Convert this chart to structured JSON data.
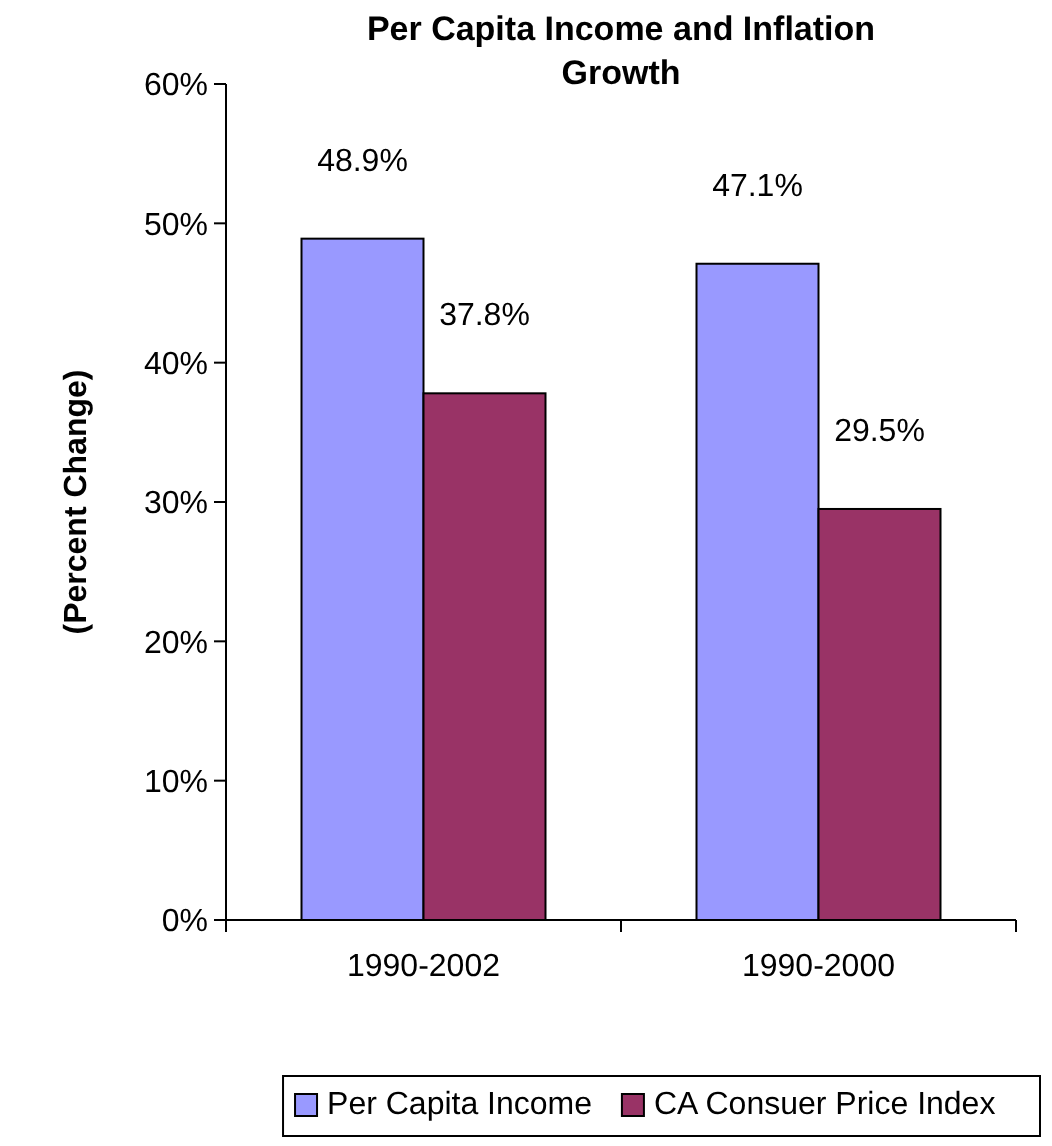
{
  "chart_data": {
    "type": "bar",
    "title": "Per Capita Income and Inflation Growth",
    "ylabel": "(Percent Change)",
    "categories": [
      "1990-2002",
      "1990-2000"
    ],
    "series": [
      {
        "name": "Per Capita Income",
        "color": "#9999ff",
        "values": [
          48.9,
          47.1
        ],
        "value_labels": [
          "48.9%",
          "47.1%"
        ]
      },
      {
        "name": "CA Consuer Price Index",
        "color": "#993366",
        "values": [
          37.8,
          29.5
        ],
        "value_labels": [
          "37.8%",
          "29.5%"
        ]
      }
    ],
    "ylim": [
      0,
      60
    ],
    "yticks": [
      {
        "value": 0,
        "label": "0%"
      },
      {
        "value": 10,
        "label": "10%"
      },
      {
        "value": 20,
        "label": "20%"
      },
      {
        "value": 30,
        "label": "30%"
      },
      {
        "value": 40,
        "label": "40%"
      },
      {
        "value": 50,
        "label": "50%"
      },
      {
        "value": 60,
        "label": "60%"
      }
    ],
    "grid": false,
    "legend": "bottom"
  }
}
